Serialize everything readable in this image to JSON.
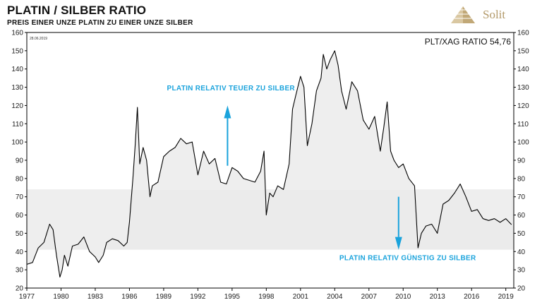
{
  "header": {
    "title": "PLATIN / SILBER RATIO",
    "subtitle": "PREIS EINER UNZE PLATIN ZU EINER UNZE SILBER"
  },
  "logo": {
    "text": "Solit",
    "icon": "pyramid-icon",
    "color": "#b39a6a"
  },
  "colors": {
    "line": "#000000",
    "band": "#ebebeb",
    "fill": "#eeeeee",
    "annotation": "#1aa3dc"
  },
  "chart_data": {
    "type": "line",
    "date_label": "28.06.2019",
    "series_label": "PLT/XAG RATIO 54,76",
    "xlim": [
      1977,
      2019.7
    ],
    "ylim": [
      20,
      160
    ],
    "y_ticks": [
      20,
      30,
      40,
      50,
      60,
      70,
      80,
      90,
      100,
      110,
      120,
      130,
      140,
      150,
      160
    ],
    "x_ticks": [
      1977,
      1980,
      1983,
      1986,
      1989,
      1992,
      1995,
      1998,
      2001,
      2004,
      2007,
      2010,
      2013,
      2016,
      2019
    ],
    "band": [
      41,
      74
    ],
    "reference_mid": 74,
    "annotations": [
      {
        "text": "PLATIN RELATIV TEUER ZU SILBER",
        "arrow": "up"
      },
      {
        "text": "PLATIN RELATIV GÜNSTIG ZU SILBER",
        "arrow": "down"
      }
    ],
    "x": [
      1977.0,
      1977.5,
      1978.0,
      1978.5,
      1979.0,
      1979.3,
      1979.6,
      1979.9,
      1980.1,
      1980.3,
      1980.6,
      1981.0,
      1981.5,
      1982.0,
      1982.5,
      1983.0,
      1983.3,
      1983.7,
      1984.0,
      1984.5,
      1985.0,
      1985.5,
      1985.8,
      1986.0,
      1986.3,
      1986.5,
      1986.7,
      1986.9,
      1987.2,
      1987.5,
      1987.8,
      1988.0,
      1988.5,
      1989.0,
      1989.5,
      1990.0,
      1990.5,
      1991.0,
      1991.5,
      1992.0,
      1992.5,
      1993.0,
      1993.5,
      1994.0,
      1994.5,
      1995.0,
      1995.5,
      1996.0,
      1996.5,
      1997.0,
      1997.5,
      1997.8,
      1998.0,
      1998.3,
      1998.6,
      1999.0,
      1999.5,
      2000.0,
      2000.3,
      2000.6,
      2001.0,
      2001.3,
      2001.6,
      2002.0,
      2002.4,
      2002.8,
      2003.0,
      2003.3,
      2003.6,
      2004.0,
      2004.3,
      2004.6,
      2005.0,
      2005.5,
      2006.0,
      2006.5,
      2007.0,
      2007.5,
      2008.0,
      2008.3,
      2008.6,
      2008.9,
      2009.2,
      2009.6,
      2010.0,
      2010.5,
      2011.0,
      2011.3,
      2011.6,
      2012.0,
      2012.5,
      2013.0,
      2013.5,
      2014.0,
      2014.5,
      2015.0,
      2015.5,
      2016.0,
      2016.5,
      2017.0,
      2017.5,
      2018.0,
      2018.5,
      2019.0,
      2019.5
    ],
    "y": [
      33,
      34,
      42,
      45,
      55,
      52,
      38,
      26,
      30,
      38,
      32,
      43,
      44,
      48,
      40,
      37,
      34,
      38,
      45,
      47,
      46,
      43,
      45,
      56,
      80,
      98,
      119,
      88,
      97,
      90,
      70,
      76,
      78,
      92,
      95,
      97,
      102,
      99,
      100,
      82,
      95,
      88,
      91,
      78,
      77,
      86,
      84,
      80,
      79,
      78,
      84,
      95,
      60,
      72,
      70,
      76,
      74,
      88,
      118,
      126,
      136,
      130,
      98,
      110,
      128,
      135,
      148,
      140,
      145,
      150,
      142,
      128,
      118,
      133,
      128,
      112,
      107,
      114,
      95,
      108,
      122,
      95,
      90,
      86,
      88,
      80,
      76,
      42,
      50,
      54,
      55,
      50,
      66,
      68,
      72,
      77,
      70,
      62,
      63,
      58,
      57,
      58,
      56,
      58,
      54.76
    ]
  }
}
